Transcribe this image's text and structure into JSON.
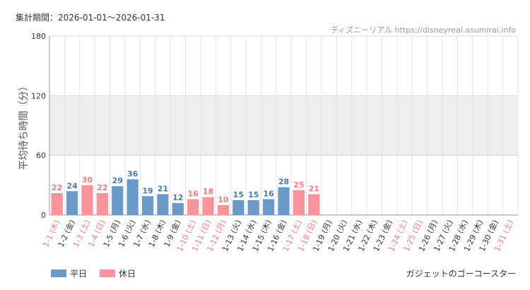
{
  "header": {
    "period": "集計期間：2026-01-01～2026-01-31",
    "site": "ディズニーリアル https://disneyreal.asumirai.info"
  },
  "footer": {
    "attraction": "ガジェットのゴーコースター"
  },
  "legend": {
    "weekday": "平日",
    "holiday": "休日"
  },
  "colors": {
    "weekday": "#6c9ac8",
    "holiday": "#f7939a",
    "weekday_text": "#4a79ad",
    "holiday_text": "#f07a82",
    "band": "#eeeeee",
    "grid": "#e4e4e4"
  },
  "chart_data": {
    "type": "bar",
    "ylabel": "平均待ち時間（分）",
    "ylim": [
      0,
      180
    ],
    "yticks": [
      0,
      60,
      120,
      180
    ],
    "shaded_band": [
      60,
      120
    ],
    "grid": true,
    "legend_position": "bottom-left",
    "categories": [
      "1-1 (木)",
      "1-2 (金)",
      "1-3 (土)",
      "1-4 (日)",
      "1-5 (月)",
      "1-6 (火)",
      "1-7 (水)",
      "1-8 (木)",
      "1-9 (金)",
      "1-10 (土)",
      "1-11 (日)",
      "1-12 (月)",
      "1-13 (火)",
      "1-14 (水)",
      "1-15 (木)",
      "1-16 (金)",
      "1-17 (土)",
      "1-18 (日)",
      "1-19 (月)",
      "1-20 (火)",
      "1-21 (水)",
      "1-22 (木)",
      "1-23 (金)",
      "1-24 (土)",
      "1-25 (日)",
      "1-26 (月)",
      "1-27 (火)",
      "1-28 (水)",
      "1-29 (木)",
      "1-30 (金)",
      "1-31 (土)"
    ],
    "day_type": [
      "holiday",
      "weekday",
      "holiday",
      "holiday",
      "weekday",
      "weekday",
      "weekday",
      "weekday",
      "weekday",
      "holiday",
      "holiday",
      "holiday",
      "weekday",
      "weekday",
      "weekday",
      "weekday",
      "holiday",
      "holiday",
      "weekday",
      "weekday",
      "weekday",
      "weekday",
      "weekday",
      "holiday",
      "holiday",
      "weekday",
      "weekday",
      "weekday",
      "weekday",
      "weekday",
      "holiday"
    ],
    "values": [
      22,
      24,
      30,
      22,
      29,
      36,
      19,
      21,
      12,
      16,
      18,
      10,
      15,
      15,
      16,
      28,
      25,
      21,
      null,
      null,
      null,
      null,
      null,
      null,
      null,
      null,
      null,
      null,
      null,
      null,
      null
    ]
  }
}
